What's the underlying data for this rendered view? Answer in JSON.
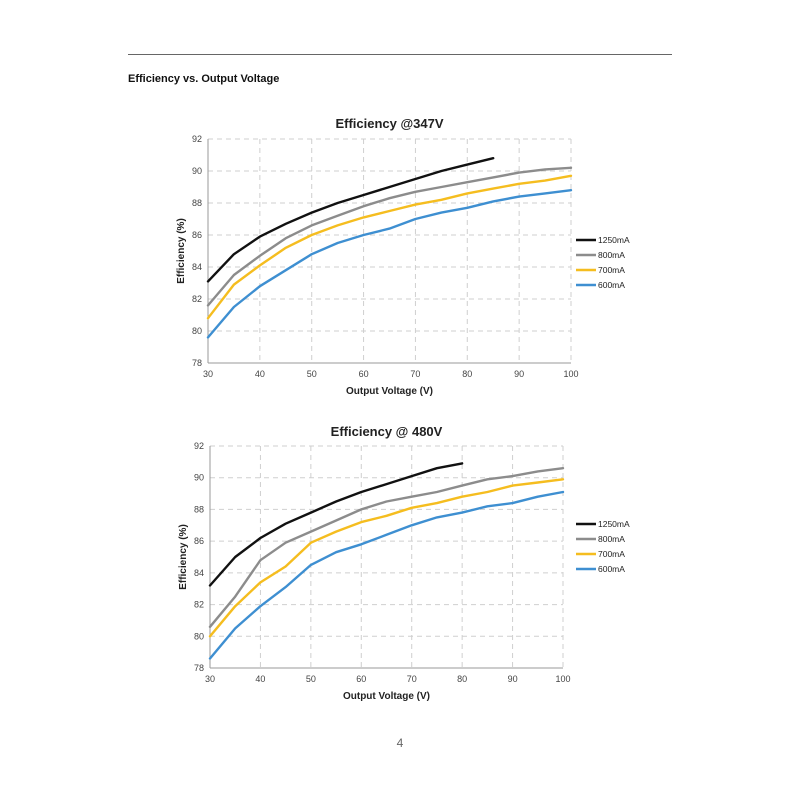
{
  "page": {
    "heading": "Efficiency vs. Output Voltage",
    "page_number": "4"
  },
  "chart_data": [
    {
      "type": "line",
      "title": "Efficiency @347V",
      "xlabel": "Output Voltage (V)",
      "ylabel": "Efficiency (%)",
      "xlim": [
        30,
        100
      ],
      "ylim": [
        78,
        92
      ],
      "xticks": [
        30,
        40,
        50,
        60,
        70,
        80,
        90,
        100
      ],
      "yticks": [
        78,
        80,
        82,
        84,
        86,
        88,
        90,
        92
      ],
      "grid": true,
      "legend_position": "right",
      "series": [
        {
          "name": "1250mA",
          "color": "#111111",
          "x": [
            30,
            35,
            40,
            45,
            50,
            55,
            60,
            65,
            70,
            75,
            80,
            85
          ],
          "y": [
            83.1,
            84.8,
            85.9,
            86.7,
            87.4,
            88.0,
            88.5,
            89.0,
            89.5,
            90.0,
            90.4,
            90.8
          ]
        },
        {
          "name": "800mA",
          "color": "#8c8c8c",
          "x": [
            30,
            35,
            40,
            45,
            50,
            55,
            60,
            65,
            70,
            75,
            80,
            85,
            90,
            95,
            100
          ],
          "y": [
            81.6,
            83.5,
            84.7,
            85.8,
            86.6,
            87.2,
            87.8,
            88.3,
            88.7,
            89.0,
            89.3,
            89.6,
            89.9,
            90.1,
            90.2
          ]
        },
        {
          "name": "700mA",
          "color": "#f5bd1f",
          "x": [
            30,
            35,
            40,
            45,
            50,
            55,
            60,
            65,
            70,
            75,
            80,
            85,
            90,
            95,
            100
          ],
          "y": [
            80.8,
            82.9,
            84.1,
            85.2,
            86.0,
            86.6,
            87.1,
            87.5,
            87.9,
            88.2,
            88.6,
            88.9,
            89.2,
            89.4,
            89.7
          ]
        },
        {
          "name": "600mA",
          "color": "#3e8fd1",
          "x": [
            30,
            35,
            40,
            45,
            50,
            55,
            60,
            65,
            70,
            75,
            80,
            85,
            90,
            95,
            100
          ],
          "y": [
            79.6,
            81.5,
            82.8,
            83.8,
            84.8,
            85.5,
            86.0,
            86.4,
            87.0,
            87.4,
            87.7,
            88.1,
            88.4,
            88.6,
            88.8
          ]
        }
      ]
    },
    {
      "type": "line",
      "title": "Efficiency @ 480V",
      "xlabel": "Output Voltage (V)",
      "ylabel": "Efficiency (%)",
      "xlim": [
        30,
        100
      ],
      "ylim": [
        78,
        92
      ],
      "xticks": [
        30,
        40,
        50,
        60,
        70,
        80,
        90,
        100
      ],
      "yticks": [
        78,
        80,
        82,
        84,
        86,
        88,
        90,
        92
      ],
      "grid": true,
      "legend_position": "right",
      "series": [
        {
          "name": "1250mA",
          "color": "#111111",
          "x": [
            30,
            35,
            40,
            45,
            50,
            55,
            60,
            65,
            70,
            75,
            80
          ],
          "y": [
            83.2,
            85.0,
            86.2,
            87.1,
            87.8,
            88.5,
            89.1,
            89.6,
            90.1,
            90.6,
            90.9
          ]
        },
        {
          "name": "800mA",
          "color": "#8c8c8c",
          "x": [
            30,
            35,
            40,
            45,
            50,
            55,
            60,
            65,
            70,
            75,
            80,
            85,
            90,
            95,
            100
          ],
          "y": [
            80.6,
            82.5,
            84.8,
            85.9,
            86.6,
            87.3,
            88.0,
            88.5,
            88.8,
            89.1,
            89.5,
            89.9,
            90.1,
            90.4,
            90.6
          ]
        },
        {
          "name": "700mA",
          "color": "#f5bd1f",
          "x": [
            30,
            35,
            40,
            45,
            50,
            55,
            60,
            65,
            70,
            75,
            80,
            85,
            90,
            95,
            100
          ],
          "y": [
            80.0,
            81.9,
            83.4,
            84.4,
            85.9,
            86.6,
            87.2,
            87.6,
            88.1,
            88.4,
            88.8,
            89.1,
            89.5,
            89.7,
            89.9
          ]
        },
        {
          "name": "600mA",
          "color": "#3e8fd1",
          "x": [
            30,
            35,
            40,
            45,
            50,
            55,
            60,
            65,
            70,
            75,
            80,
            85,
            90,
            95,
            100
          ],
          "y": [
            78.6,
            80.5,
            81.9,
            83.1,
            84.5,
            85.3,
            85.8,
            86.4,
            87.0,
            87.5,
            87.8,
            88.2,
            88.4,
            88.8,
            89.1
          ]
        }
      ]
    }
  ]
}
